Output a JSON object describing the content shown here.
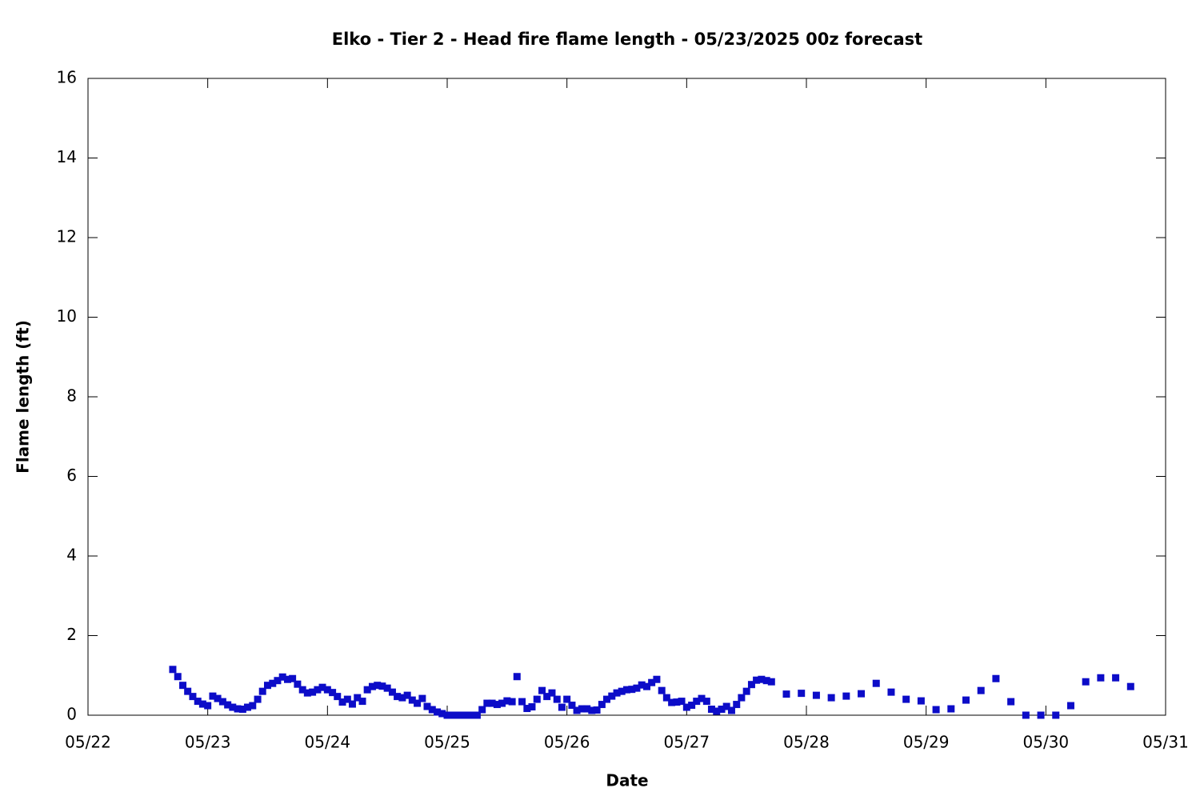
{
  "chart_data": {
    "type": "scatter",
    "title": "Elko - Tier 2 - Head fire flame length - 05/23/2025 00z forecast",
    "xlabel": "Date",
    "ylabel": "Flame length (ft)",
    "xlim": [
      22,
      31
    ],
    "xticks": [
      {
        "value": 22,
        "label": "05/22"
      },
      {
        "value": 23,
        "label": "05/23"
      },
      {
        "value": 24,
        "label": "05/24"
      },
      {
        "value": 25,
        "label": "05/25"
      },
      {
        "value": 26,
        "label": "05/26"
      },
      {
        "value": 27,
        "label": "05/27"
      },
      {
        "value": 28,
        "label": "05/28"
      },
      {
        "value": 29,
        "label": "05/29"
      },
      {
        "value": 30,
        "label": "05/30"
      },
      {
        "value": 31,
        "label": "05/31"
      }
    ],
    "ylim": [
      0,
      16
    ],
    "yticks": [
      0,
      2,
      4,
      6,
      8,
      10,
      12,
      14,
      16
    ],
    "color": "#0c0cc8",
    "x": [
      22.708,
      22.75,
      22.792,
      22.833,
      22.875,
      22.917,
      22.958,
      23.0,
      23.042,
      23.083,
      23.125,
      23.167,
      23.208,
      23.25,
      23.292,
      23.333,
      23.375,
      23.417,
      23.458,
      23.5,
      23.542,
      23.583,
      23.625,
      23.667,
      23.708,
      23.75,
      23.792,
      23.833,
      23.875,
      23.917,
      23.958,
      24.0,
      24.042,
      24.083,
      24.125,
      24.167,
      24.208,
      24.25,
      24.292,
      24.333,
      24.375,
      24.417,
      24.458,
      24.5,
      24.542,
      24.583,
      24.625,
      24.667,
      24.708,
      24.75,
      24.792,
      24.833,
      24.875,
      24.917,
      24.958,
      25.0,
      25.042,
      25.083,
      25.125,
      25.167,
      25.208,
      25.25,
      25.292,
      25.333,
      25.375,
      25.417,
      25.458,
      25.5,
      25.542,
      25.583,
      25.625,
      25.667,
      25.708,
      25.75,
      25.792,
      25.833,
      25.875,
      25.917,
      25.958,
      26.0,
      26.042,
      26.083,
      26.125,
      26.167,
      26.208,
      26.25,
      26.292,
      26.333,
      26.375,
      26.417,
      26.458,
      26.5,
      26.542,
      26.583,
      26.625,
      26.667,
      26.708,
      26.75,
      26.792,
      26.833,
      26.875,
      26.917,
      26.958,
      27.0,
      27.042,
      27.083,
      27.125,
      27.167,
      27.208,
      27.25,
      27.292,
      27.333,
      27.375,
      27.417,
      27.458,
      27.5,
      27.542,
      27.583,
      27.625,
      27.667,
      27.708,
      27.833,
      27.958,
      28.083,
      28.208,
      28.333,
      28.458,
      28.583,
      28.708,
      28.833,
      28.958,
      29.083,
      29.208,
      29.333,
      29.458,
      29.583,
      29.708,
      29.833,
      29.958,
      30.083,
      30.208,
      30.333,
      30.458,
      30.583,
      30.708
    ],
    "values": [
      1.15,
      0.97,
      0.75,
      0.6,
      0.47,
      0.35,
      0.28,
      0.24,
      0.48,
      0.42,
      0.34,
      0.26,
      0.2,
      0.16,
      0.15,
      0.2,
      0.24,
      0.4,
      0.6,
      0.75,
      0.8,
      0.87,
      0.96,
      0.9,
      0.92,
      0.78,
      0.64,
      0.56,
      0.58,
      0.64,
      0.7,
      0.64,
      0.57,
      0.47,
      0.33,
      0.4,
      0.28,
      0.44,
      0.35,
      0.64,
      0.72,
      0.75,
      0.73,
      0.68,
      0.58,
      0.47,
      0.44,
      0.5,
      0.38,
      0.3,
      0.42,
      0.22,
      0.14,
      0.08,
      0.04,
      0,
      0,
      0,
      0,
      0,
      0,
      0,
      0.14,
      0.3,
      0.3,
      0.27,
      0.3,
      0.36,
      0.34,
      0.97,
      0.34,
      0.17,
      0.21,
      0.4,
      0.62,
      0.47,
      0.56,
      0.4,
      0.2,
      0.4,
      0.25,
      0.12,
      0.16,
      0.16,
      0.12,
      0.13,
      0.27,
      0.4,
      0.48,
      0.56,
      0.6,
      0.64,
      0.65,
      0.68,
      0.76,
      0.72,
      0.82,
      0.9,
      0.62,
      0.44,
      0.32,
      0.33,
      0.35,
      0.2,
      0.25,
      0.35,
      0.42,
      0.35,
      0.15,
      0.1,
      0.15,
      0.22,
      0.12,
      0.27,
      0.44,
      0.6,
      0.77,
      0.88,
      0.9,
      0.87,
      0.84,
      0.53,
      0.55,
      0.5,
      0.44,
      0.48,
      0.54,
      0.8,
      0.58,
      0.4,
      0.36,
      0.14,
      0.16,
      0.38,
      0.62,
      0.92,
      0.34,
      0,
      0,
      0,
      0.24,
      0.84,
      0.94,
      0.94,
      0.72
    ]
  }
}
